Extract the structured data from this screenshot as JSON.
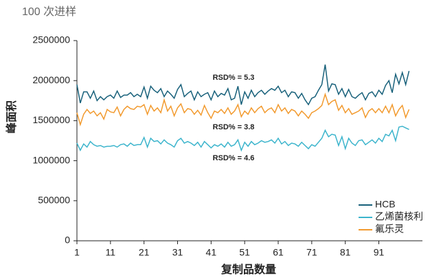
{
  "chart_data": {
    "type": "line",
    "title": "100 次进样",
    "x_label": "复制品数量",
    "y_label": "峰面积",
    "x": [
      1,
      2,
      3,
      4,
      5,
      6,
      7,
      8,
      9,
      10,
      11,
      12,
      13,
      14,
      15,
      16,
      17,
      18,
      19,
      20,
      21,
      22,
      23,
      24,
      25,
      26,
      27,
      28,
      29,
      30,
      31,
      32,
      33,
      34,
      35,
      36,
      37,
      38,
      39,
      40,
      41,
      42,
      43,
      44,
      45,
      46,
      47,
      48,
      49,
      50,
      51,
      52,
      53,
      54,
      55,
      56,
      57,
      58,
      59,
      60,
      61,
      62,
      63,
      64,
      65,
      66,
      67,
      68,
      69,
      70,
      71,
      72,
      73,
      74,
      75,
      76,
      77,
      78,
      79,
      80,
      81,
      82,
      83,
      84,
      85,
      86,
      87,
      88,
      89,
      90,
      91,
      92,
      93,
      94,
      95,
      96,
      97,
      98,
      99,
      100
    ],
    "xlim": [
      1,
      104
    ],
    "xticks": [
      1,
      11,
      21,
      31,
      41,
      51,
      61,
      71,
      81,
      91
    ],
    "ylim": [
      0,
      2500000
    ],
    "yticks": [
      0,
      500000,
      1000000,
      1500000,
      2000000,
      2500000
    ],
    "legend": "lower right",
    "series": [
      {
        "name": "HCB",
        "color": "#17607a",
        "values": [
          1950000,
          1720000,
          1860000,
          1860000,
          1780000,
          1870000,
          1750000,
          1800000,
          1760000,
          1800000,
          1820000,
          1780000,
          1870000,
          1790000,
          1820000,
          1820000,
          1850000,
          1800000,
          1830000,
          1800000,
          1920000,
          1780000,
          1930000,
          1880000,
          1850000,
          1900000,
          1800000,
          1870000,
          1830000,
          1780000,
          1890000,
          1950000,
          1800000,
          1840000,
          1870000,
          1760000,
          1860000,
          1800000,
          1830000,
          1850000,
          1760000,
          1870000,
          1800000,
          1840000,
          1820000,
          1900000,
          1760000,
          1780000,
          1930000,
          1700000,
          1860000,
          1780000,
          1880000,
          1800000,
          1850000,
          1880000,
          1830000,
          1870000,
          1900000,
          1880000,
          1930000,
          1850000,
          1880000,
          1800000,
          1860000,
          1850000,
          1780000,
          1840000,
          1760000,
          1700000,
          1780000,
          1800000,
          1880000,
          1950000,
          2200000,
          1870000,
          1960000,
          1950000,
          1830000,
          1900000,
          1800000,
          1890000,
          1800000,
          1780000,
          1820000,
          1850000,
          1760000,
          1840000,
          1860000,
          1800000,
          1880000,
          1830000,
          1940000,
          2000000,
          1850000,
          2080000,
          1960000,
          2100000,
          1950000,
          2120000
        ]
      },
      {
        "name": "乙烯菌核利",
        "color": "#3bb4cc",
        "values": [
          1220000,
          1130000,
          1210000,
          1170000,
          1240000,
          1200000,
          1180000,
          1190000,
          1170000,
          1180000,
          1180000,
          1190000,
          1170000,
          1200000,
          1210000,
          1180000,
          1220000,
          1190000,
          1200000,
          1200000,
          1290000,
          1170000,
          1280000,
          1240000,
          1250000,
          1210000,
          1260000,
          1220000,
          1200000,
          1170000,
          1250000,
          1280000,
          1220000,
          1240000,
          1220000,
          1190000,
          1230000,
          1170000,
          1240000,
          1200000,
          1160000,
          1200000,
          1180000,
          1210000,
          1170000,
          1230000,
          1180000,
          1200000,
          1260000,
          1130000,
          1230000,
          1180000,
          1240000,
          1200000,
          1220000,
          1250000,
          1230000,
          1240000,
          1260000,
          1220000,
          1280000,
          1210000,
          1240000,
          1190000,
          1220000,
          1210000,
          1180000,
          1230000,
          1190000,
          1150000,
          1200000,
          1180000,
          1230000,
          1280000,
          1380000,
          1300000,
          1330000,
          1320000,
          1190000,
          1300000,
          1150000,
          1280000,
          1220000,
          1190000,
          1250000,
          1260000,
          1200000,
          1230000,
          1260000,
          1220000,
          1280000,
          1240000,
          1330000,
          1310000,
          1380000,
          1250000,
          1420000,
          1430000,
          1410000,
          1390000
        ]
      },
      {
        "name": "氟乐灵",
        "color": "#f29a2e",
        "values": [
          1600000,
          1450000,
          1580000,
          1640000,
          1590000,
          1620000,
          1560000,
          1600000,
          1520000,
          1640000,
          1610000,
          1600000,
          1670000,
          1560000,
          1640000,
          1680000,
          1650000,
          1640000,
          1680000,
          1670000,
          1700000,
          1580000,
          1690000,
          1620000,
          1660000,
          1600000,
          1760000,
          1620000,
          1680000,
          1560000,
          1660000,
          1710000,
          1600000,
          1650000,
          1640000,
          1580000,
          1630000,
          1570000,
          1690000,
          1600000,
          1530000,
          1620000,
          1600000,
          1640000,
          1590000,
          1660000,
          1580000,
          1620000,
          1700000,
          1550000,
          1620000,
          1580000,
          1660000,
          1600000,
          1650000,
          1680000,
          1600000,
          1640000,
          1660000,
          1600000,
          1700000,
          1620000,
          1660000,
          1590000,
          1640000,
          1620000,
          1560000,
          1620000,
          1580000,
          1530000,
          1600000,
          1620000,
          1650000,
          1690000,
          1830000,
          1700000,
          1740000,
          1760000,
          1630000,
          1690000,
          1600000,
          1650000,
          1580000,
          1600000,
          1620000,
          1660000,
          1540000,
          1620000,
          1650000,
          1600000,
          1650000,
          1600000,
          1680000,
          1600000,
          1700000,
          1560000,
          1640000,
          1690000,
          1540000,
          1640000
        ]
      }
    ],
    "annotations": [
      "RSD% = 5.3",
      "RSD% = 3.8",
      "RSD% = 4.6"
    ]
  }
}
